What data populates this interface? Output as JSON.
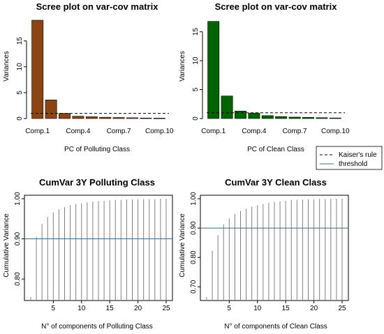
{
  "chart_data": [
    {
      "type": "bar",
      "title": "Scree plot on var-cov matrix",
      "xlabel": "PC of Polluting Class",
      "ylabel": "Variances",
      "categories": [
        "Comp.1",
        "Comp.2",
        "Comp.3",
        "Comp.4",
        "Comp.5",
        "Comp.6",
        "Comp.7",
        "Comp.8",
        "Comp.9",
        "Comp.10"
      ],
      "tick_labels": [
        "Comp.1",
        "Comp.4",
        "Comp.7",
        "Comp.10"
      ],
      "values": [
        19.0,
        3.6,
        1.0,
        0.45,
        0.35,
        0.25,
        0.2,
        0.15,
        0.1,
        0.08
      ],
      "ylim": [
        0,
        19
      ],
      "yticks": [
        0,
        5,
        10,
        15
      ],
      "threshold": 1,
      "color": "#8b4513"
    },
    {
      "type": "bar",
      "title": "Scree plot on var-cov matrix",
      "xlabel": "PC of Clean Class",
      "ylabel": "Variances",
      "categories": [
        "Comp.1",
        "Comp.2",
        "Comp.3",
        "Comp.4",
        "Comp.5",
        "Comp.6",
        "Comp.7",
        "Comp.8",
        "Comp.9",
        "Comp.10"
      ],
      "tick_labels": [
        "Comp.1",
        "Comp.4",
        "Comp.7",
        "Comp.10"
      ],
      "values": [
        16.8,
        3.9,
        1.3,
        0.95,
        0.5,
        0.35,
        0.25,
        0.2,
        0.15,
        0.1
      ],
      "ylim": [
        0,
        17
      ],
      "yticks": [
        0,
        5,
        10,
        15
      ],
      "threshold": 1,
      "color": "#006400"
    },
    {
      "type": "line",
      "title": "CumVar 3Y Polluting Class",
      "xlabel": "N° of components of Polluting Class",
      "ylabel": "Cumulative Variance",
      "x": [
        1,
        2,
        3,
        4,
        5,
        6,
        7,
        8,
        9,
        10,
        11,
        12,
        13,
        14,
        15,
        16,
        17,
        18,
        19,
        20,
        21,
        22,
        23,
        24,
        25
      ],
      "values": [
        0.755,
        0.905,
        0.937,
        0.955,
        0.966,
        0.974,
        0.979,
        0.984,
        0.987,
        0.989,
        0.991,
        0.993,
        0.994,
        0.995,
        0.996,
        0.997,
        0.997,
        0.998,
        0.998,
        0.999,
        0.999,
        0.999,
        0.999,
        1.0,
        1.0
      ],
      "xticks": [
        5,
        10,
        15,
        20,
        25
      ],
      "yticks": [
        0.8,
        0.9,
        1.0
      ],
      "ytick_labels": [
        "0.80",
        "0.90",
        "1.00"
      ],
      "ylim": [
        0.755,
        1.0
      ],
      "xlim": [
        1,
        25
      ],
      "threshold": 0.9
    },
    {
      "type": "line",
      "title": "CumVar 3Y Clean Class",
      "xlabel": "N° of components of Clean Class",
      "ylabel": "Cumulative Variance",
      "x": [
        1,
        2,
        3,
        4,
        5,
        6,
        7,
        8,
        9,
        10,
        11,
        12,
        13,
        14,
        15,
        16,
        17,
        18,
        19,
        20,
        21,
        22,
        23,
        24,
        25
      ],
      "values": [
        0.665,
        0.823,
        0.876,
        0.913,
        0.933,
        0.948,
        0.958,
        0.966,
        0.973,
        0.978,
        0.982,
        0.986,
        0.989,
        0.991,
        0.993,
        0.995,
        0.996,
        0.997,
        0.998,
        0.998,
        0.999,
        0.999,
        1.0,
        1.0,
        1.0
      ],
      "xticks": [
        5,
        10,
        15,
        20,
        25
      ],
      "yticks": [
        0.7,
        0.8,
        0.9,
        1.0
      ],
      "ytick_labels": [
        "0.70",
        "0.80",
        "0.90",
        "1.00"
      ],
      "ylim": [
        0.665,
        1.0
      ],
      "xlim": [
        1,
        25
      ],
      "threshold": 0.9
    }
  ],
  "legend": {
    "items": [
      {
        "label": "Kaiser's rule",
        "style": "dashed"
      },
      {
        "label": "threshold",
        "style": "solid",
        "color": "#3a6a8a"
      }
    ]
  }
}
